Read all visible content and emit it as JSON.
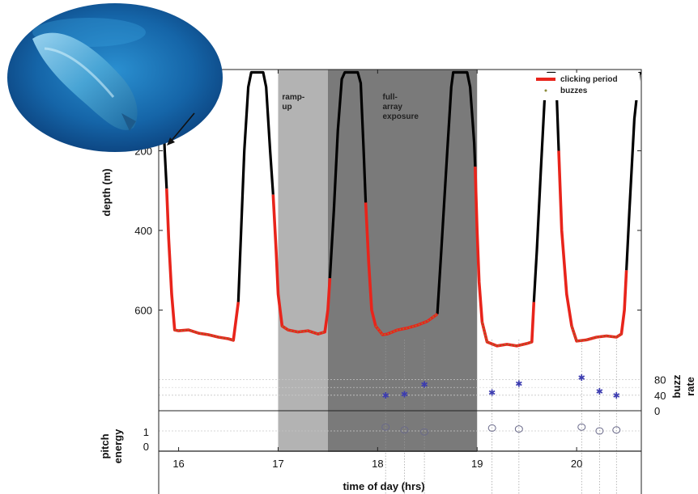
{
  "chart_data": {
    "type": "line",
    "title": "",
    "xlabel": "time of day (hrs)",
    "xlim": [
      15.8,
      20.65
    ],
    "xticks": [
      16,
      17,
      18,
      19,
      20
    ],
    "colors": {
      "surface": "#000000",
      "clicking": "#e8241b",
      "buzzes": "#8a8a3a",
      "rampup_bg": "#b3b3b3",
      "exposure_bg": "#7a7a7a",
      "markers": "#3d3db0"
    },
    "annotations": [
      {
        "lines": [
          "ramp-",
          "up"
        ],
        "x": 17.04
      },
      {
        "lines": [
          "full-",
          "array",
          "exposure"
        ],
        "x": 18.05
      }
    ],
    "shaded_periods": [
      {
        "name": "ramp-up",
        "x0": 17.0,
        "x1": 17.5
      },
      {
        "name": "full-array exposure",
        "x0": 17.5,
        "x1": 19.0
      }
    ],
    "legend": {
      "placement": "top-right",
      "entries": [
        {
          "label": "clicking period",
          "style": "line"
        },
        {
          "label": "buzzes",
          "style": "dot"
        }
      ]
    },
    "depth_panel": {
      "ylabel": "depth (m)",
      "ylim": [
        700,
        0
      ],
      "yticks": [
        200,
        400,
        600
      ],
      "surface_segments": [
        [
          [
            15.85,
            130
          ],
          [
            15.86,
            200
          ],
          [
            15.88,
            295
          ]
        ],
        [
          [
            16.6,
            580
          ],
          [
            16.62,
            450
          ],
          [
            16.66,
            200
          ],
          [
            16.7,
            40
          ],
          [
            16.73,
            3
          ],
          [
            16.85,
            3
          ],
          [
            16.88,
            40
          ],
          [
            16.92,
            200
          ],
          [
            16.95,
            310
          ]
        ],
        [
          [
            17.52,
            520
          ],
          [
            17.56,
            350
          ],
          [
            17.6,
            150
          ],
          [
            17.64,
            20
          ],
          [
            17.67,
            3
          ],
          [
            17.8,
            3
          ],
          [
            17.83,
            30
          ],
          [
            17.86,
            200
          ],
          [
            17.88,
            330
          ]
        ],
        [
          [
            18.6,
            610
          ],
          [
            18.64,
            450
          ],
          [
            18.7,
            200
          ],
          [
            18.74,
            40
          ],
          [
            18.76,
            3
          ],
          [
            18.9,
            3
          ],
          [
            18.93,
            40
          ],
          [
            18.97,
            180
          ],
          [
            18.98,
            240
          ]
        ],
        [
          [
            19.57,
            580
          ],
          [
            19.6,
            450
          ],
          [
            19.64,
            250
          ],
          [
            19.68,
            60
          ],
          [
            19.71,
            5
          ],
          [
            19.78,
            5
          ],
          [
            19.8,
            60
          ],
          [
            19.82,
            200
          ]
        ],
        [
          [
            20.5,
            500
          ],
          [
            20.53,
            350
          ],
          [
            20.58,
            120
          ],
          [
            20.63,
            5
          ],
          [
            20.65,
            5
          ]
        ]
      ],
      "clicking_segments": [
        [
          [
            15.88,
            295
          ],
          [
            15.9,
            420
          ],
          [
            15.93,
            560
          ],
          [
            15.96,
            650
          ],
          [
            16.0,
            652
          ],
          [
            16.1,
            650
          ],
          [
            16.2,
            658
          ],
          [
            16.3,
            662
          ],
          [
            16.4,
            668
          ],
          [
            16.5,
            672
          ],
          [
            16.55,
            676
          ],
          [
            16.6,
            580
          ]
        ],
        [
          [
            16.95,
            310
          ],
          [
            16.98,
            450
          ],
          [
            17.0,
            560
          ],
          [
            17.04,
            640
          ],
          [
            17.1,
            650
          ],
          [
            17.2,
            655
          ],
          [
            17.3,
            652
          ],
          [
            17.4,
            660
          ],
          [
            17.47,
            655
          ],
          [
            17.5,
            600
          ],
          [
            17.52,
            520
          ]
        ],
        [
          [
            17.88,
            330
          ],
          [
            17.91,
            480
          ],
          [
            17.94,
            600
          ],
          [
            17.98,
            640
          ],
          [
            18.05,
            662
          ],
          [
            18.1,
            660
          ],
          [
            18.2,
            650
          ],
          [
            18.3,
            645
          ],
          [
            18.4,
            638
          ],
          [
            18.5,
            628
          ],
          [
            18.6,
            610
          ]
        ],
        [
          [
            18.98,
            240
          ],
          [
            19.0,
            400
          ],
          [
            19.02,
            530
          ],
          [
            19.05,
            630
          ],
          [
            19.1,
            680
          ],
          [
            19.2,
            690
          ],
          [
            19.3,
            686
          ],
          [
            19.4,
            690
          ],
          [
            19.5,
            684
          ],
          [
            19.55,
            680
          ],
          [
            19.57,
            580
          ]
        ],
        [
          [
            19.82,
            200
          ],
          [
            19.85,
            400
          ],
          [
            19.9,
            560
          ],
          [
            19.95,
            640
          ],
          [
            20.0,
            678
          ],
          [
            20.1,
            675
          ],
          [
            20.2,
            668
          ],
          [
            20.3,
            665
          ],
          [
            20.4,
            668
          ],
          [
            20.45,
            660
          ],
          [
            20.48,
            600
          ],
          [
            20.5,
            500
          ]
        ]
      ]
    },
    "buzz_panel": {
      "ylabel": "buzz rate",
      "ylim": [
        0,
        100
      ],
      "yticks": [
        0,
        40,
        80
      ],
      "points": [
        {
          "x": 18.08,
          "y": 40
        },
        {
          "x": 18.27,
          "y": 43
        },
        {
          "x": 18.47,
          "y": 68
        },
        {
          "x": 19.15,
          "y": 47
        },
        {
          "x": 19.42,
          "y": 70
        },
        {
          "x": 20.05,
          "y": 85
        },
        {
          "x": 20.23,
          "y": 50
        },
        {
          "x": 20.4,
          "y": 40
        }
      ]
    },
    "pitch_panel": {
      "ylabel": "pitch energy",
      "ylim": [
        0,
        2
      ],
      "yticks": [
        0,
        1
      ],
      "points": [
        {
          "x": 18.08,
          "y": 1.2
        },
        {
          "x": 18.27,
          "y": 1.05
        },
        {
          "x": 18.47,
          "y": 0.95
        },
        {
          "x": 19.15,
          "y": 1.15
        },
        {
          "x": 19.42,
          "y": 1.1
        },
        {
          "x": 20.05,
          "y": 1.2
        },
        {
          "x": 20.23,
          "y": 1.0
        },
        {
          "x": 20.4,
          "y": 1.05
        }
      ]
    }
  }
}
